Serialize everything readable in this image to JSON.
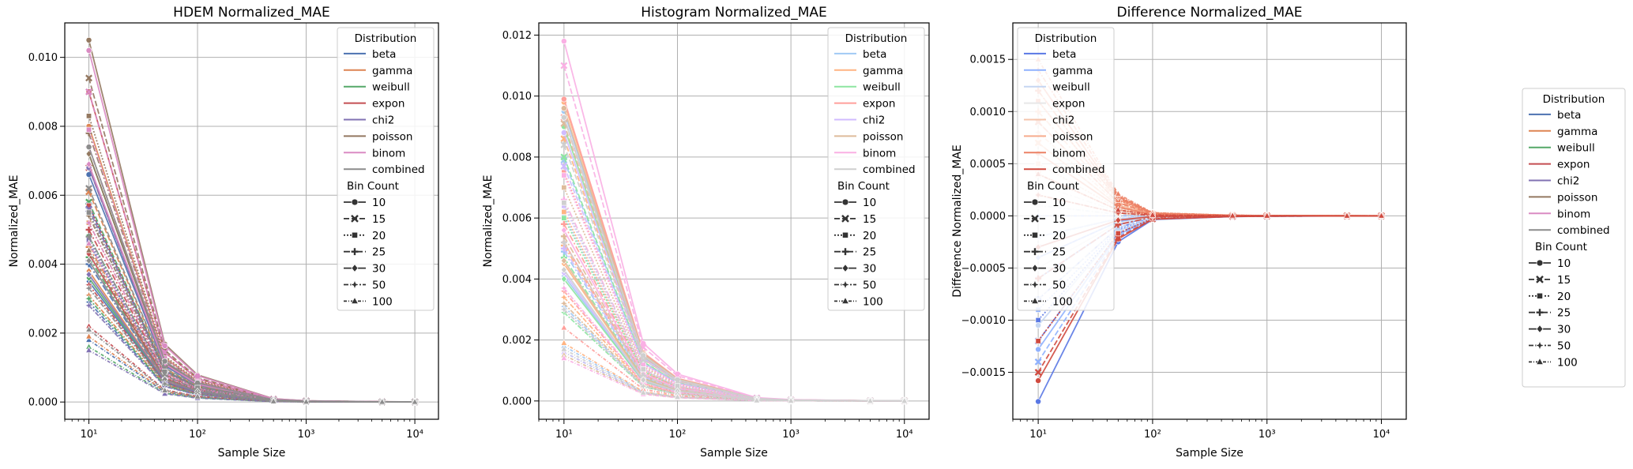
{
  "figure": {
    "legend_title_distribution": "Distribution",
    "legend_title_bins": "Bin Count",
    "distributions": [
      "beta",
      "gamma",
      "weibull",
      "expon",
      "chi2",
      "poisson",
      "binom",
      "combined"
    ],
    "bin_counts": [
      "10",
      "15",
      "20",
      "25",
      "30",
      "50",
      "100"
    ],
    "bin_styles": [
      {
        "dash": "",
        "marker": "circle"
      },
      {
        "dash": "7 3",
        "marker": "x"
      },
      {
        "dash": "2 2",
        "marker": "square"
      },
      {
        "dash": "8 3 2 3",
        "marker": "plus"
      },
      {
        "dash": "",
        "marker": "diamond"
      },
      {
        "dash": "6 2 2 2",
        "marker": "star"
      },
      {
        "dash": "4 2 1 2",
        "marker": "triangle"
      }
    ],
    "palettes": {
      "deep": [
        "#4c72b0",
        "#dd8452",
        "#55a868",
        "#c44e52",
        "#8172b3",
        "#937860",
        "#da8bc3",
        "#8c8c8c"
      ],
      "pastel": [
        "#a1c9f4",
        "#ffb482",
        "#8de5a1",
        "#ff9f9b",
        "#d0bbff",
        "#debb9b",
        "#fab0e4",
        "#cfcfcf"
      ],
      "coolwarm": [
        "#5a78e4",
        "#8fb1fe",
        "#c5d6f2",
        "#e7e7e8",
        "#f4c4ac",
        "#f7ac8e",
        "#ec8165",
        "#d04a3f"
      ]
    }
  },
  "chart_data": [
    {
      "type": "line",
      "title": "HDEM Normalized_MAE",
      "xlabel": "Sample Size",
      "ylabel": "Normalized_MAE",
      "xscale": "log",
      "x": [
        10,
        50,
        100,
        500,
        1000,
        5000,
        10000
      ],
      "xticks": [
        "10¹",
        "10²",
        "10³",
        "10⁴"
      ],
      "yticks": [
        "0.000",
        "0.002",
        "0.004",
        "0.006",
        "0.008",
        "0.010"
      ],
      "ylim": [
        -0.0005,
        0.011
      ],
      "palette": "deep",
      "legend": "top-right",
      "series_note_values_at_n10_by_distribution": {
        "beta": [
          0.0066,
          0.0057,
          0.0046,
          0.004,
          0.0035,
          0.0029,
          0.0018
        ],
        "gamma": [
          0.008,
          0.0061,
          0.0052,
          0.0045,
          0.0038,
          0.0031,
          0.0019
        ],
        "weibull": [
          0.0072,
          0.0058,
          0.0048,
          0.0042,
          0.0036,
          0.003,
          0.0016
        ],
        "expon": [
          0.009,
          0.0068,
          0.0057,
          0.005,
          0.0043,
          0.0034,
          0.0022
        ],
        "chi2": [
          0.0068,
          0.0056,
          0.0047,
          0.0041,
          0.0037,
          0.0028,
          0.0015
        ],
        "poisson": [
          0.0105,
          0.0094,
          0.0083,
          0.0078,
          0.0072,
          0.0054,
          0.0044
        ],
        "binom": [
          0.0102,
          0.009,
          0.0079,
          0.0074,
          0.0069,
          0.0052,
          0.0046
        ],
        "combined": [
          0.0074,
          0.0062,
          0.0055,
          0.0048,
          0.0041,
          0.0033,
          0.0021
        ]
      },
      "decay": [
        1.0,
        0.16,
        0.075,
        0.009,
        0.0035,
        0.0008,
        0.0004
      ]
    },
    {
      "type": "line",
      "title": "Histogram Normalized_MAE",
      "xlabel": "Sample Size",
      "ylabel": "Normalized_MAE",
      "xscale": "log",
      "x": [
        10,
        50,
        100,
        500,
        1000,
        5000,
        10000
      ],
      "xticks": [
        "10¹",
        "10²",
        "10³",
        "10⁴"
      ],
      "yticks": [
        "0.000",
        "0.002",
        "0.004",
        "0.006",
        "0.008",
        "0.010",
        "0.012"
      ],
      "ylim": [
        -0.0006,
        0.0124
      ],
      "palette": "pastel",
      "legend": "top-right",
      "series_note_values_at_n10_by_distribution": {
        "beta": [
          0.0095,
          0.0079,
          0.0061,
          0.0049,
          0.0041,
          0.0031,
          0.0018
        ],
        "gamma": [
          0.0098,
          0.0086,
          0.0062,
          0.0051,
          0.0045,
          0.0034,
          0.0019
        ],
        "weibull": [
          0.009,
          0.008,
          0.006,
          0.0047,
          0.004,
          0.0029,
          0.0016
        ],
        "expon": [
          0.0099,
          0.0093,
          0.0075,
          0.0058,
          0.0052,
          0.0036,
          0.0024
        ],
        "chi2": [
          0.0088,
          0.0077,
          0.0064,
          0.005,
          0.0042,
          0.003,
          0.0016
        ],
        "poisson": [
          0.0096,
          0.0091,
          0.007,
          0.0054,
          0.0046,
          0.0032,
          0.0015
        ],
        "binom": [
          0.0118,
          0.011,
          0.0074,
          0.0066,
          0.0056,
          0.0037,
          0.0014
        ],
        "combined": [
          0.0093,
          0.0084,
          0.0065,
          0.0052,
          0.0043,
          0.003,
          0.0017
        ]
      },
      "decay": [
        1.0,
        0.16,
        0.075,
        0.009,
        0.0035,
        0.0008,
        0.0004
      ]
    },
    {
      "type": "line",
      "title": "Difference Normalized_MAE",
      "xlabel": "Sample Size",
      "ylabel": "Difference Normalized_MAE",
      "xscale": "log",
      "x": [
        10,
        50,
        100,
        500,
        1000,
        5000,
        10000
      ],
      "xticks": [
        "10¹",
        "10²",
        "10³",
        "10⁴"
      ],
      "yticks": [
        "−0.0015",
        "−0.0010",
        "−0.0005",
        "0.0000",
        "0.0005",
        "0.0010",
        "0.0015"
      ],
      "yticks_values": [
        -0.0015,
        -0.001,
        -0.0005,
        0,
        0.0005,
        0.001,
        0.0015
      ],
      "ylim": [
        -0.00195,
        0.00185
      ],
      "palette": "coolwarm",
      "legend": "top-left",
      "series_note_values_at_n10_by_distribution": {
        "beta": [
          -0.00178,
          -0.0012,
          -0.001,
          -0.0008,
          -0.0006,
          -0.0004,
          -0.0002
        ],
        "gamma": [
          -0.00128,
          -0.0014,
          -0.0009,
          -0.0006,
          -0.0004,
          -0.0002,
          0.0
        ],
        "weibull": [
          -0.00105,
          -0.0008,
          -0.0006,
          -0.0003,
          -0.0002,
          0.0001,
          0.0002
        ],
        "expon": [
          -0.0005,
          -0.0003,
          0.0001,
          0.0003,
          0.0004,
          0.0005,
          0.0006
        ],
        "chi2": [
          0.0002,
          0.0004,
          0.0005,
          0.0006,
          0.0007,
          0.0008,
          0.0009
        ],
        "poisson": [
          0.0004,
          0.0007,
          0.0009,
          0.001,
          0.0011,
          0.0012,
          0.0013
        ],
        "binom": [
          0.0006,
          0.0009,
          0.0011,
          0.0012,
          0.0013,
          0.0014,
          0.0015
        ],
        "combined": [
          -0.00158,
          -0.0015,
          -0.0012,
          -0.0006,
          -0.0003,
          0.0002,
          0.0004
        ]
      },
      "decay": [
        1.0,
        0.14,
        0.02,
        0.004,
        0.002,
        0.0005,
        0.0003
      ]
    }
  ],
  "outer_legend": {
    "title_distribution": "Distribution",
    "title_bins": "Bin Count",
    "palette": "deep"
  }
}
